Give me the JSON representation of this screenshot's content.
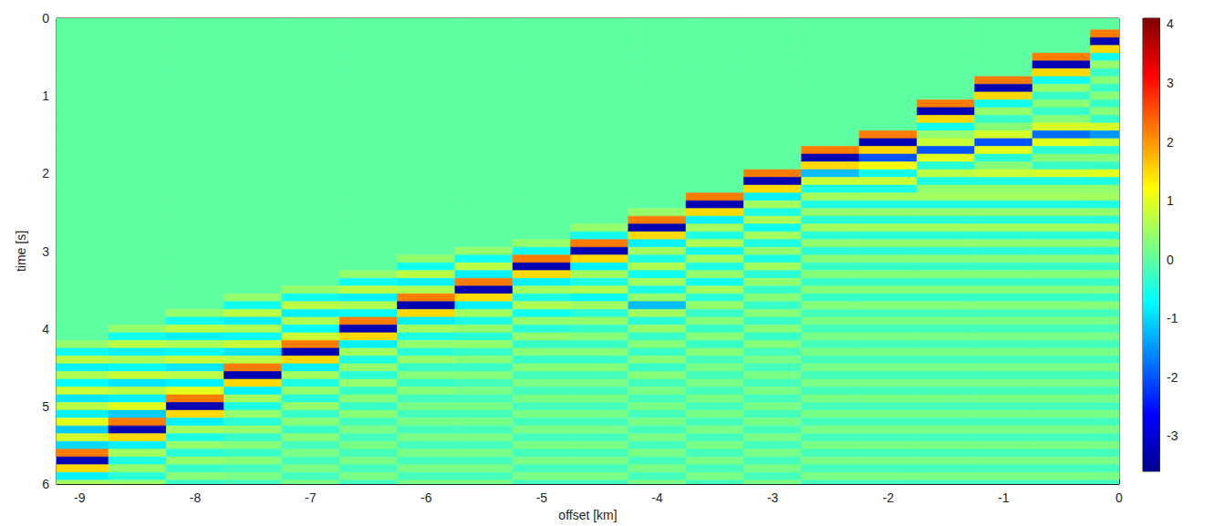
{
  "chart_data": {
    "type": "heatmap",
    "x_label": "offset [km]",
    "y_label": "time [s]",
    "xlim": [
      -9.2,
      0
    ],
    "xticks": [
      -9,
      -8,
      -7,
      -6,
      -5,
      -4,
      -3,
      -2,
      -1,
      0
    ],
    "ylim": [
      0,
      6
    ],
    "yticks": [
      0,
      1,
      2,
      3,
      4,
      5,
      6
    ],
    "grid": false,
    "colorbar_lim": [
      -3.6,
      4.1
    ],
    "colorbar_ticks": [
      -3,
      -2,
      -1,
      0,
      1,
      2,
      3,
      4
    ],
    "x": [
      -9,
      -8.5,
      -8,
      -7.5,
      -7,
      -6.5,
      -6,
      -5.5,
      -5,
      -4.5,
      -4,
      -3.5,
      -3,
      -2.5,
      -2,
      -1.5,
      -1,
      -0.5,
      0
    ],
    "y": [
      0,
      0.1,
      0.2,
      0.3,
      0.4,
      0.5,
      0.6,
      0.7,
      0.8,
      0.9,
      1,
      1.1,
      1.2,
      1.3,
      1.4,
      1.5,
      1.6,
      1.7,
      1.8,
      1.9,
      2,
      2.1,
      2.2,
      2.3,
      2.4,
      2.5,
      2.6,
      2.7,
      2.8,
      2.9,
      3,
      3.1,
      3.2,
      3.3,
      3.4,
      3.5,
      3.6,
      3.7,
      3.8,
      3.9,
      4,
      4.1,
      4.2,
      4.3,
      4.4,
      4.5,
      4.6,
      4.7,
      4.8,
      4.9,
      5,
      5.1,
      5.2,
      5.3,
      5.4,
      5.5,
      5.6,
      5.7,
      5.8,
      5.9,
      6
    ],
    "cells": [
      [
        0,
        0,
        0,
        0,
        0,
        0,
        0,
        0,
        0,
        0,
        0,
        0,
        0,
        0,
        0,
        0,
        0,
        0,
        0,
        0,
        0,
        0,
        0,
        0,
        0,
        0,
        0,
        0,
        0,
        0,
        0,
        0,
        0,
        0,
        0,
        0,
        0,
        0,
        0,
        0,
        0,
        0,
        0.4,
        -0.6,
        0.7,
        -0.8,
        0.6,
        -0.7,
        0.8,
        -0.9,
        0.7,
        -0.8,
        1.0,
        -1.1,
        0.9,
        -1.0,
        2.2,
        -3.3,
        1.5,
        -0.8,
        0.5
      ],
      [
        0,
        0,
        0,
        0,
        0,
        0,
        0,
        0,
        0,
        0,
        0,
        0,
        0,
        0,
        0,
        0,
        0,
        0,
        0,
        0,
        0,
        0,
        0,
        0,
        0,
        0,
        0,
        0,
        0,
        0,
        0,
        0,
        0,
        0,
        0,
        0,
        0,
        0,
        0,
        0,
        0.4,
        -0.6,
        0.7,
        -0.8,
        0.6,
        -0.7,
        0.8,
        -0.9,
        0.7,
        -0.8,
        1.0,
        -1.1,
        2.2,
        -3.3,
        1.5,
        -0.8,
        0.5,
        -0.5,
        0.4,
        -0.4,
        0.4
      ],
      [
        0,
        0,
        0,
        0,
        0,
        0,
        0,
        0,
        0,
        0,
        0,
        0,
        0,
        0,
        0,
        0,
        0,
        0,
        0,
        0,
        0,
        0,
        0,
        0,
        0,
        0,
        0,
        0,
        0,
        0,
        0,
        0,
        0,
        0,
        0,
        0,
        0,
        0,
        0.4,
        -0.6,
        0.7,
        -0.8,
        0.6,
        -0.7,
        0.8,
        -0.9,
        0.7,
        -0.8,
        1.0,
        2.2,
        -3.3,
        1.5,
        -0.8,
        0.5,
        -0.5,
        0.4,
        -0.4,
        0.4,
        -0.3,
        0.3,
        -0.3
      ],
      [
        0,
        0,
        0,
        0,
        0,
        0,
        0,
        0,
        0,
        0,
        0,
        0,
        0,
        0,
        0,
        0,
        0,
        0,
        0,
        0,
        0,
        0,
        0,
        0,
        0,
        0,
        0,
        0,
        0,
        0,
        0,
        0,
        0,
        0,
        0,
        0,
        0.4,
        -0.6,
        0.7,
        -0.8,
        0.6,
        -0.7,
        0.8,
        -0.9,
        0.7,
        2.2,
        -3.3,
        1.5,
        -0.8,
        0.5,
        -0.5,
        0.4,
        -0.4,
        0.4,
        -0.3,
        0.3,
        -0.3,
        0.3,
        -0.2,
        0.2,
        -0.2
      ],
      [
        0,
        0,
        0,
        0,
        0,
        0,
        0,
        0,
        0,
        0,
        0,
        0,
        0,
        0,
        0,
        0,
        0,
        0,
        0,
        0,
        0,
        0,
        0,
        0,
        0,
        0,
        0,
        0,
        0,
        0,
        0,
        0,
        0,
        0,
        0,
        0.4,
        -0.6,
        0.7,
        -0.8,
        0.6,
        -0.7,
        0.8,
        2.2,
        -3.3,
        1.5,
        -0.8,
        0.5,
        -0.5,
        0.4,
        -0.4,
        0.4,
        -0.3,
        0.3,
        -0.3,
        0.3,
        -0.2,
        0.2,
        -0.2,
        0.2,
        -0.2,
        0.2
      ],
      [
        0,
        0,
        0,
        0,
        0,
        0,
        0,
        0,
        0,
        0,
        0,
        0,
        0,
        0,
        0,
        0,
        0,
        0,
        0,
        0,
        0,
        0,
        0,
        0,
        0,
        0,
        0,
        0,
        0,
        0,
        0,
        0,
        0,
        0.4,
        -0.6,
        0.7,
        -0.8,
        0.6,
        -0.7,
        2.2,
        -3.3,
        1.5,
        -0.8,
        0.5,
        -0.5,
        0.4,
        -0.4,
        0.4,
        -0.3,
        0.3,
        -0.3,
        0.3,
        -0.2,
        0.2,
        -0.2,
        0.2,
        -0.2,
        0.2,
        -0.2,
        0.2,
        -0.2
      ],
      [
        0,
        0,
        0,
        0,
        0,
        0,
        0,
        0,
        0,
        0,
        0,
        0,
        0,
        0,
        0,
        0,
        0,
        0,
        0,
        0,
        0,
        0,
        0,
        0,
        0,
        0,
        0,
        0,
        0,
        0,
        0,
        0.4,
        -0.6,
        0.7,
        -0.8,
        0.6,
        2.2,
        -3.3,
        1.5,
        -0.8,
        0.5,
        -0.5,
        0.4,
        -0.4,
        0.4,
        -0.3,
        0.3,
        -0.3,
        0.3,
        -0.2,
        0.2,
        -0.2,
        0.2,
        -0.2,
        0.2,
        -0.2,
        0.2,
        -0.2,
        0.2,
        -0.2,
        0.2
      ],
      [
        0,
        0,
        0,
        0,
        0,
        0,
        0,
        0,
        0,
        0,
        0,
        0,
        0,
        0,
        0,
        0,
        0,
        0,
        0,
        0,
        0,
        0,
        0,
        0,
        0,
        0,
        0,
        0,
        0,
        0,
        0.4,
        -0.6,
        0.7,
        -0.8,
        2.2,
        -3.3,
        1.5,
        -0.8,
        0.5,
        -0.5,
        0.4,
        -0.4,
        0.4,
        -0.3,
        0.3,
        -0.3,
        0.3,
        -0.2,
        0.2,
        -0.2,
        0.2,
        -0.2,
        0.2,
        -0.2,
        0.2,
        -0.2,
        0.2,
        -0.2,
        0.2,
        -0.2,
        0.2
      ],
      [
        0,
        0,
        0,
        0,
        0,
        0,
        0,
        0,
        0,
        0,
        0,
        0,
        0,
        0,
        0,
        0,
        0,
        0,
        0,
        0,
        0,
        0,
        0,
        0,
        0,
        0,
        0,
        0,
        0,
        0.4,
        -0.6,
        2.2,
        -3.3,
        1.5,
        -0.8,
        0.5,
        -0.5,
        0.6,
        -0.6,
        0.4,
        -0.4,
        0.4,
        -0.3,
        0.3,
        -0.3,
        0.3,
        -0.2,
        0.2,
        -0.2,
        0.2,
        -0.2,
        0.2,
        -0.2,
        0.2,
        -0.2,
        0.2,
        -0.2,
        0.2,
        -0.2,
        0.2,
        -0.2
      ],
      [
        0,
        0,
        0,
        0,
        0,
        0,
        0,
        0,
        0,
        0,
        0,
        0,
        0,
        0,
        0,
        0,
        0,
        0,
        0,
        0,
        0,
        0,
        0,
        0,
        0,
        0,
        0,
        0.4,
        -0.6,
        2.2,
        -3.3,
        1.5,
        -0.8,
        0.5,
        -0.5,
        0.6,
        -0.7,
        0.5,
        -0.4,
        0.4,
        -0.3,
        0.3,
        -0.3,
        0.3,
        -0.3,
        0.3,
        -0.2,
        0.2,
        -0.2,
        0.2,
        -0.2,
        0.2,
        -0.2,
        0.2,
        -0.2,
        0.2,
        -0.2,
        0.2,
        -0.2,
        0.2,
        -0.2
      ],
      [
        0,
        0,
        0,
        0,
        0,
        0,
        0,
        0,
        0,
        0,
        0,
        0,
        0,
        0,
        0,
        0,
        0,
        0,
        0,
        0,
        0,
        0,
        0,
        0,
        0,
        0.4,
        2.2,
        -3.3,
        1.5,
        -0.8,
        0.5,
        -0.5,
        0.6,
        -0.6,
        0.5,
        -0.5,
        0.4,
        -1.2,
        0.5,
        -0.4,
        0.4,
        -0.3,
        0.3,
        -0.3,
        0.3,
        -0.3,
        0.3,
        -0.2,
        0.2,
        -0.2,
        0.2,
        -0.2,
        0.2,
        -0.2,
        0.2,
        -0.2,
        0.2,
        -0.2,
        0.2,
        -0.2,
        0.2
      ],
      [
        0,
        0,
        0,
        0,
        0,
        0,
        0,
        0,
        0,
        0,
        0,
        0,
        0,
        0,
        0,
        0,
        0,
        0,
        0,
        0,
        0,
        0,
        0,
        2.2,
        -3.3,
        1.5,
        -0.8,
        0.5,
        -0.5,
        0.6,
        -0.6,
        0.5,
        -0.5,
        0.4,
        -0.6,
        0.5,
        -0.4,
        0.4,
        -0.3,
        0.3,
        -0.3,
        0.3,
        -0.3,
        0.3,
        -0.2,
        0.2,
        -0.2,
        0.2,
        -0.2,
        0.2,
        -0.2,
        0.2,
        -0.2,
        0.2,
        -0.2,
        0.2,
        -0.2,
        0.2,
        -0.2,
        0.2,
        -0.2
      ],
      [
        0,
        0,
        0,
        0,
        0,
        0,
        0,
        0,
        0,
        0,
        0,
        0,
        0,
        0,
        0,
        0,
        0,
        0,
        0,
        0,
        2.2,
        -3.3,
        1.5,
        -0.8,
        0.5,
        -0.5,
        0.6,
        -0.6,
        0.5,
        -0.5,
        0.4,
        -0.5,
        0.5,
        -0.4,
        0.4,
        -0.3,
        0.3,
        -0.3,
        0.3,
        -0.3,
        0.3,
        -0.3,
        0.3,
        -0.2,
        0.2,
        -0.2,
        0.2,
        -0.2,
        0.2,
        -0.2,
        0.2,
        -0.2,
        0.2,
        -0.2,
        0.2,
        -0.2,
        0.2,
        -0.2,
        0.2,
        -0.2,
        0.2
      ],
      [
        0,
        0,
        0,
        0,
        0,
        0,
        0,
        0,
        0,
        0,
        0,
        0,
        0,
        0,
        0,
        0,
        0,
        2.2,
        -3.3,
        1.5,
        -1.2,
        0.8,
        -0.5,
        0.5,
        -0.5,
        0.4,
        -0.4,
        0.5,
        -0.4,
        0.4,
        -0.4,
        0.3,
        -0.3,
        0.3,
        -0.3,
        0.3,
        -0.3,
        0.3,
        -0.2,
        0.2,
        -0.2,
        0.2,
        -0.2,
        0.2,
        -0.2,
        0.2,
        -0.2,
        0.2,
        -0.2,
        0.2,
        -0.2,
        0.2,
        -0.2,
        0.2,
        -0.2,
        0.2,
        -0.2,
        0.2,
        -0.2,
        0.2,
        -0.2
      ],
      [
        0,
        0,
        0,
        0,
        0,
        0,
        0,
        0,
        0,
        0,
        0,
        0,
        0,
        0,
        0,
        2.2,
        -3.3,
        1.5,
        -2.0,
        1.2,
        -0.6,
        0.8,
        -0.5,
        0.5,
        -0.5,
        0.4,
        -0.4,
        0.5,
        -0.4,
        0.4,
        -0.4,
        0.3,
        -0.3,
        0.3,
        -0.3,
        0.3,
        -0.3,
        0.3,
        -0.2,
        0.2,
        -0.2,
        0.2,
        -0.2,
        0.2,
        -0.2,
        0.2,
        -0.2,
        0.2,
        -0.2,
        0.2,
        -0.2,
        0.2,
        -0.2,
        0.2,
        -0.2,
        0.2,
        -0.2,
        0.2,
        -0.2,
        0.2,
        -0.2
      ],
      [
        0,
        0,
        0,
        0,
        0,
        0,
        0,
        0,
        0,
        0,
        0,
        2.2,
        -3.3,
        1.5,
        -0.6,
        0.4,
        0.8,
        -2.0,
        1.0,
        -0.4,
        0.7,
        -0.5,
        0.4,
        0.5,
        -0.5,
        0.4,
        -0.4,
        0.5,
        -0.4,
        0.4,
        -0.4,
        0.3,
        -0.3,
        0.3,
        -0.3,
        0.3,
        -0.3,
        0.3,
        -0.2,
        0.2,
        -0.2,
        0.2,
        -0.2,
        0.2,
        -0.2,
        0.2,
        -0.2,
        0.2,
        -0.2,
        0.2,
        -0.2,
        0.2,
        -0.2,
        0.2,
        -0.2,
        0.2,
        -0.2,
        0.2,
        -0.2,
        0.2,
        -0.2
      ],
      [
        0,
        0,
        0,
        0,
        0,
        0,
        0,
        0,
        2.2,
        -3.3,
        1.5,
        -0.6,
        0.4,
        -0.3,
        0.3,
        0.9,
        -2.0,
        1.0,
        -0.4,
        0.3,
        0.8,
        -0.5,
        0.4,
        0.5,
        -0.5,
        0.4,
        -0.4,
        0.5,
        -0.4,
        0.4,
        -0.4,
        0.3,
        -0.3,
        0.3,
        -0.3,
        0.3,
        -0.3,
        0.3,
        -0.2,
        0.2,
        -0.2,
        0.2,
        -0.2,
        0.2,
        -0.2,
        0.2,
        -0.2,
        0.2,
        -0.2,
        0.2,
        -0.2,
        0.2,
        -0.2,
        0.2,
        -0.2,
        0.2,
        -0.2,
        0.2,
        -0.2,
        0.2,
        -0.2
      ],
      [
        0,
        0,
        0,
        0,
        0,
        2.2,
        -3.3,
        1.5,
        -0.6,
        0.4,
        -0.3,
        0.3,
        -0.3,
        0.3,
        0.9,
        -1.8,
        1.0,
        -0.4,
        0.3,
        -0.3,
        0.9,
        -0.5,
        0.4,
        0.5,
        -0.5,
        0.4,
        -0.4,
        0.5,
        -0.4,
        0.4,
        -0.4,
        0.3,
        -0.3,
        0.3,
        -0.3,
        0.3,
        -0.3,
        0.3,
        -0.2,
        0.2,
        -0.2,
        0.2,
        -0.2,
        0.2,
        -0.2,
        0.2,
        -0.2,
        0.2,
        -0.2,
        0.2,
        -0.2,
        0.2,
        -0.2,
        0.2,
        -0.2,
        0.2,
        -0.2,
        0.2,
        -0.2,
        0.2,
        -0.2
      ],
      [
        0,
        0,
        2.2,
        -3.3,
        1.5,
        -0.6,
        0.4,
        -0.3,
        0.3,
        -0.3,
        0.3,
        -0.3,
        0.3,
        -0.3,
        0.9,
        -1.5,
        0.8,
        -0.4,
        0.3,
        -0.3,
        1.0,
        -0.5,
        0.4,
        0.5,
        -0.5,
        0.4,
        -0.4,
        0.5,
        -0.4,
        0.4,
        -0.4,
        0.3,
        -0.3,
        0.3,
        -0.3,
        0.3,
        -0.3,
        0.3,
        -0.2,
        0.2,
        -0.2,
        0.2,
        -0.2,
        0.2,
        -0.2,
        0.2,
        -0.2,
        0.2,
        -0.2,
        0.2,
        -0.2,
        0.2,
        -0.2,
        0.2,
        -0.2,
        0.2,
        -0.2,
        0.2,
        -0.2,
        0.2,
        -0.2
      ]
    ]
  }
}
